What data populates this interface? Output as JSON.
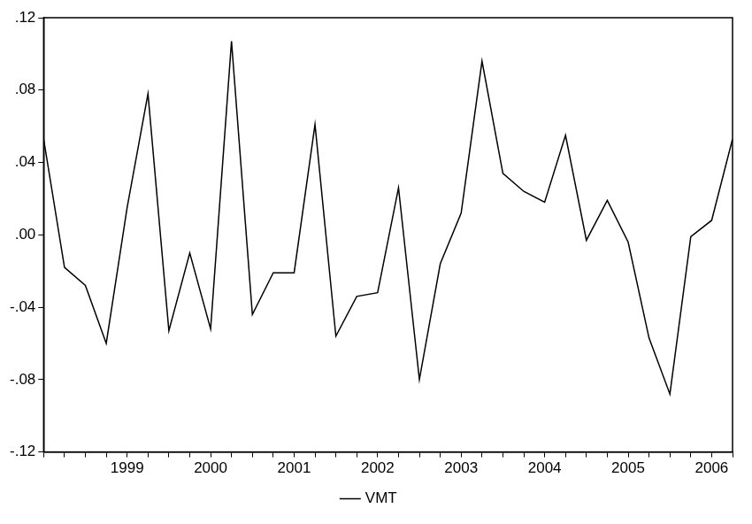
{
  "chart_data": {
    "type": "line",
    "categories": [
      null,
      null,
      null,
      null,
      "1999",
      null,
      null,
      null,
      "2000",
      null,
      null,
      null,
      "2001",
      null,
      null,
      null,
      "2002",
      null,
      null,
      null,
      "2003",
      null,
      null,
      null,
      "2004",
      null,
      null,
      null,
      "2005",
      null,
      null,
      null,
      "2006",
      null
    ],
    "series": [
      {
        "name": "VMT",
        "color": "#000000",
        "line_style": "solid",
        "marker": "none",
        "values": [
          0.053,
          -0.018,
          -0.028,
          -0.06,
          0.015,
          0.078,
          -0.053,
          -0.01,
          -0.052,
          0.107,
          -0.044,
          -0.021,
          -0.021,
          0.061,
          -0.056,
          -0.034,
          -0.032,
          0.026,
          -0.08,
          -0.016,
          0.012,
          0.096,
          0.034,
          0.024,
          0.018,
          0.055,
          -0.003,
          0.019,
          -0.004,
          -0.057,
          -0.088,
          -0.001,
          0.008,
          0.053
        ]
      }
    ],
    "ylim": [
      -0.12,
      0.12
    ],
    "yticks": [
      {
        "value": -0.12,
        "label": "-.12"
      },
      {
        "value": -0.08,
        "label": "-.08"
      },
      {
        "value": -0.04,
        "label": "-.04"
      },
      {
        "value": 0,
        "label": ".00"
      },
      {
        "value": 0.04,
        "label": ".04"
      },
      {
        "value": 0.08,
        "label": ".08"
      },
      {
        "value": 0.12,
        "label": ".12"
      }
    ],
    "grid": false,
    "legend": "bottom"
  }
}
